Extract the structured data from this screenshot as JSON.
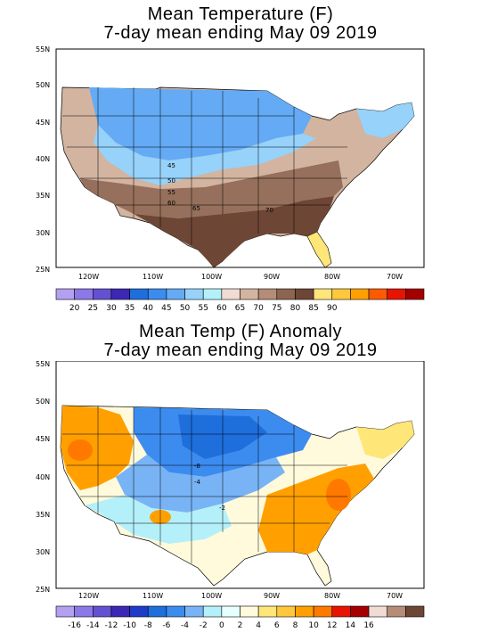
{
  "panels": [
    {
      "title_line1": "Mean Temperature (F)",
      "title_line2": "7-day mean ending May 09 2019",
      "lat_labels": [
        "55N",
        "50N",
        "45N",
        "40N",
        "35N",
        "30N",
        "25N"
      ],
      "lon_labels": [
        "120W",
        "110W",
        "100W",
        "90W",
        "80W",
        "70W"
      ],
      "contour_labels": [
        "45",
        "50",
        "55",
        "60",
        "65",
        "70"
      ],
      "colorbar_labels": [
        "20",
        "25",
        "30",
        "35",
        "40",
        "45",
        "50",
        "55",
        "60",
        "65",
        "70",
        "75",
        "80",
        "85",
        "90"
      ],
      "colorbar_colors": [
        "#b4a0f0",
        "#8c78e6",
        "#6450d2",
        "#3c28b4",
        "#1e6edc",
        "#3c8cf0",
        "#64aaf5",
        "#96d2fa",
        "#b4f0fa",
        "#f0dcd2",
        "#d2b4a0",
        "#b48c78",
        "#8c6450",
        "#6e4636",
        "#ffe678",
        "#ffc83c",
        "#ffa000",
        "#ff5a00",
        "#e61400",
        "#a50000"
      ]
    },
    {
      "title_line1": "Mean Temp (F) Anomaly",
      "title_line2": "7-day mean ending May 09 2019",
      "lat_labels": [
        "55N",
        "50N",
        "45N",
        "40N",
        "35N",
        "30N",
        "25N"
      ],
      "lon_labels": [
        "120W",
        "110W",
        "100W",
        "90W",
        "80W",
        "70W"
      ],
      "contour_labels": [
        "-8",
        "-4",
        "-2"
      ],
      "colorbar_labels": [
        "-16",
        "-14",
        "-12",
        "-10",
        "-8",
        "-6",
        "-4",
        "-2",
        "0",
        "2",
        "4",
        "6",
        "8",
        "10",
        "12",
        "14",
        "16"
      ],
      "colorbar_colors": [
        "#b4a0f0",
        "#8c78e6",
        "#6450d2",
        "#3c28b4",
        "#1e3cc8",
        "#1e6edc",
        "#3c8cf0",
        "#78b4f5",
        "#b4f0fa",
        "#e6ffff",
        "#fffadc",
        "#ffe678",
        "#ffc83c",
        "#ffa000",
        "#ff7800",
        "#e61400",
        "#a50000",
        "#f0dcd2",
        "#b48c78",
        "#6e4636"
      ]
    }
  ]
}
